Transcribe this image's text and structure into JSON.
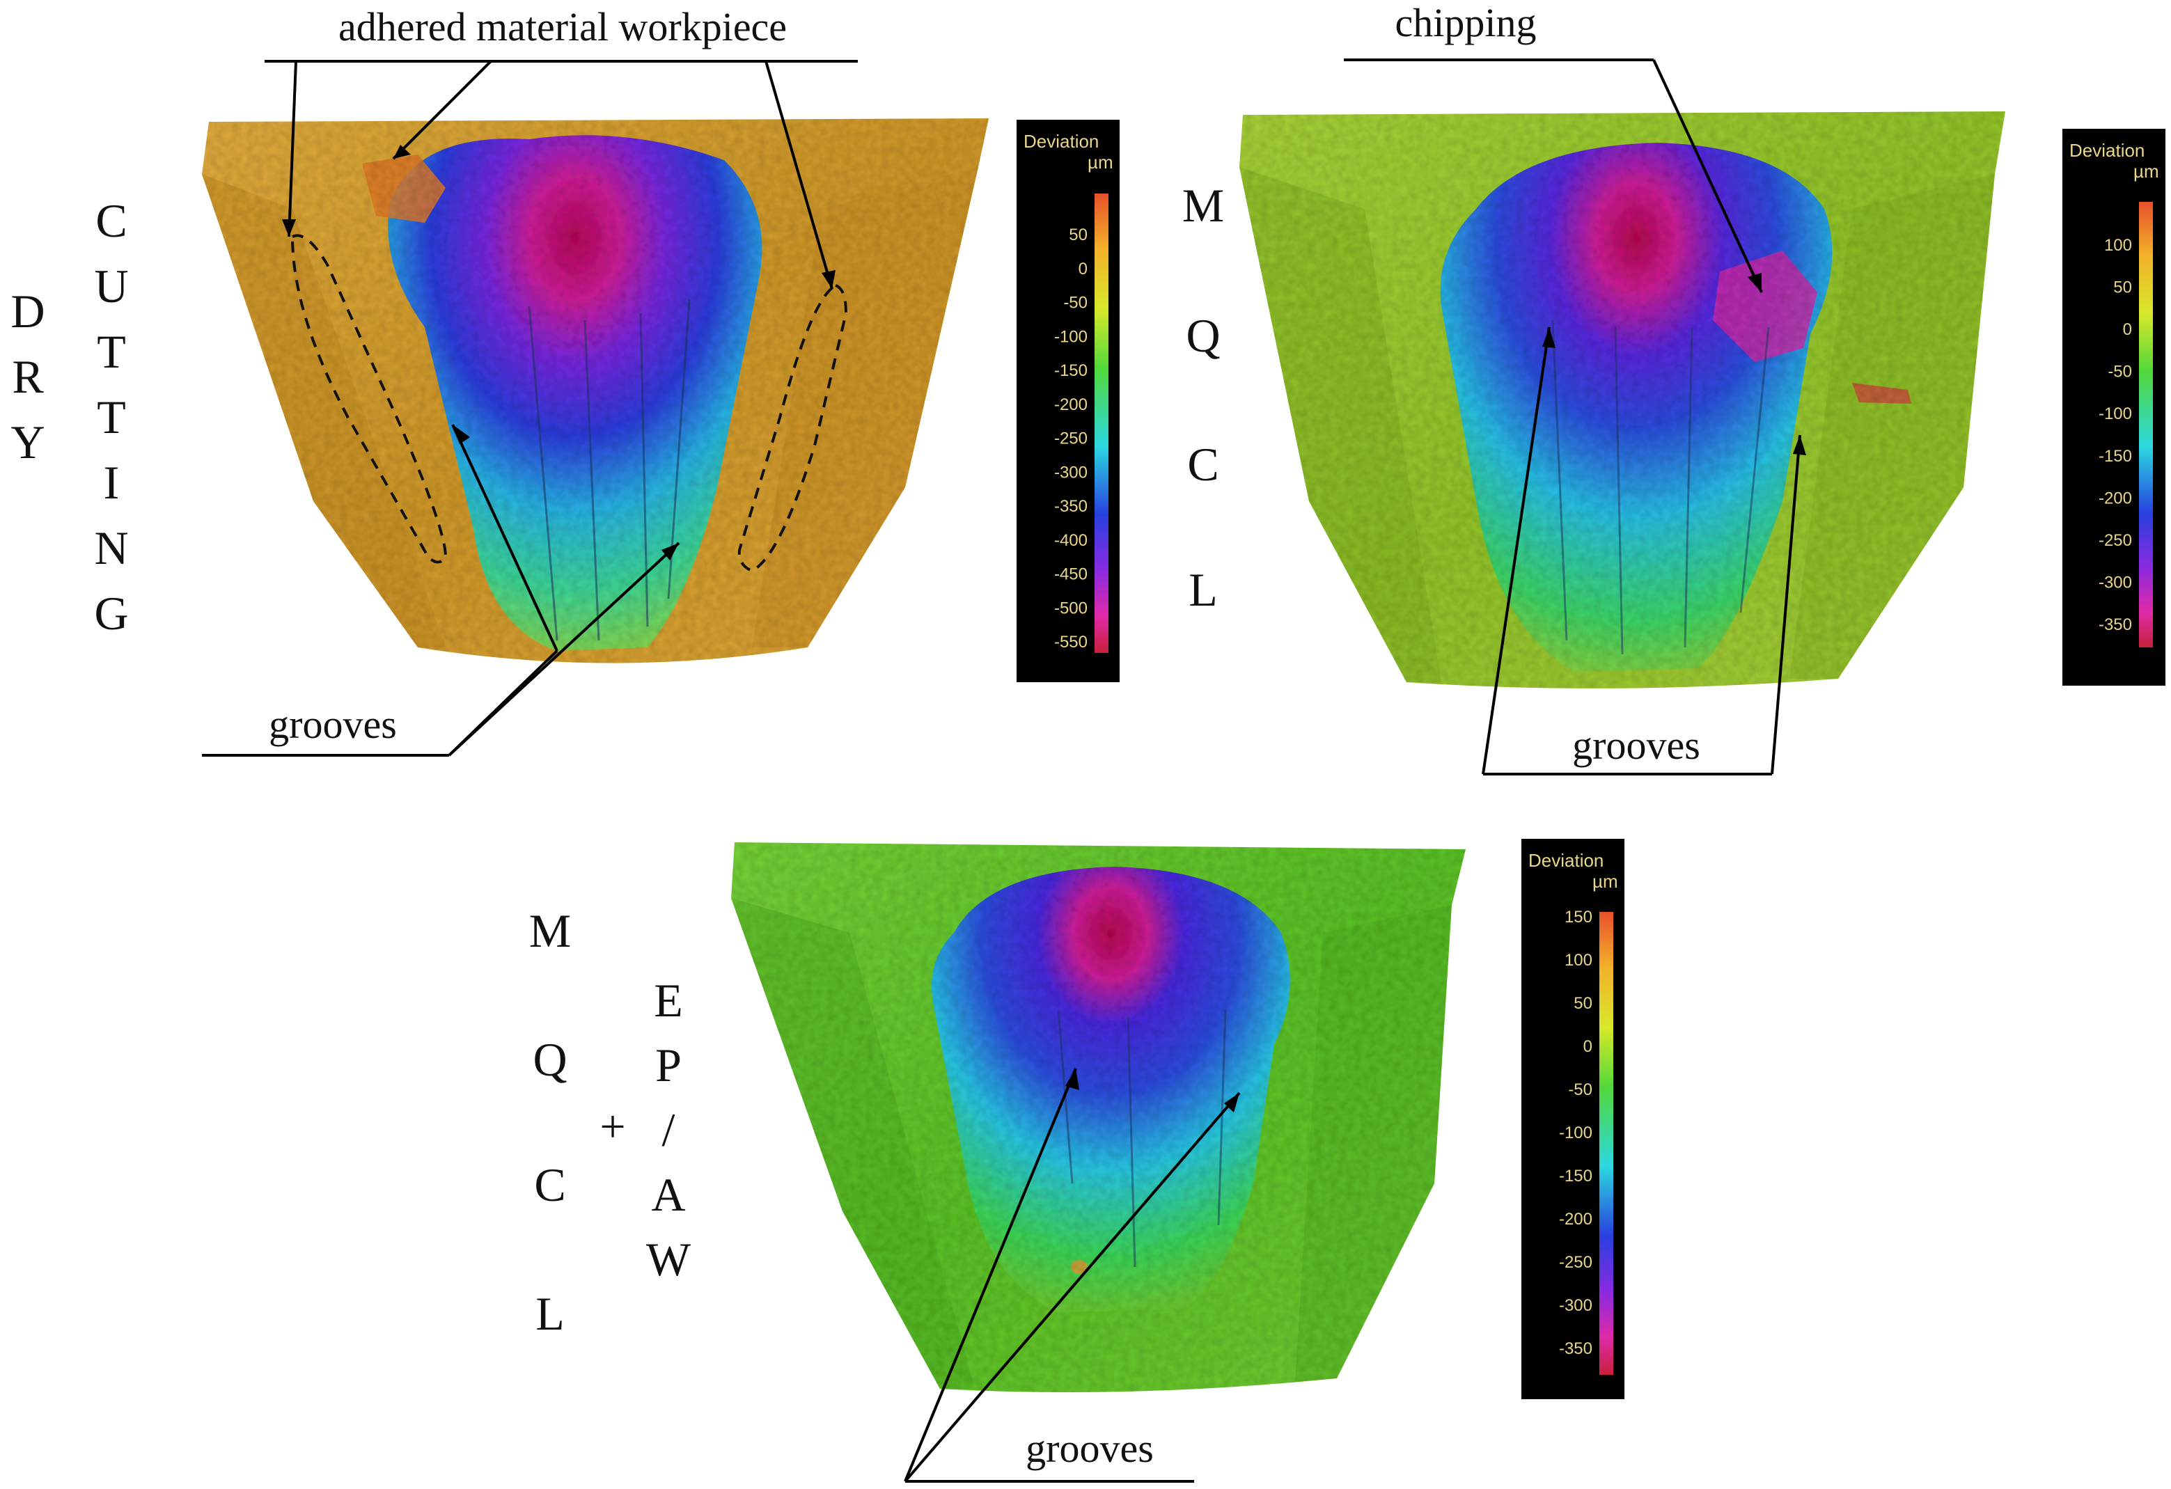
{
  "annotations": {
    "adhered": "adhered material workpiece",
    "chipping": "chipping",
    "grooves": "grooves"
  },
  "conditions": {
    "dry_left": [
      "D",
      "R",
      "Y"
    ],
    "dry_right": [
      "C",
      "U",
      "T",
      "T",
      "I",
      "N",
      "G"
    ],
    "mqcl": [
      "M",
      "Q",
      "C",
      "L"
    ],
    "plus": "+",
    "epaw": [
      "E",
      "P",
      "/",
      "A",
      "W"
    ]
  },
  "colorbars": [
    {
      "title": "Deviation",
      "unit": "µm",
      "ticks": [
        "50",
        "0",
        "-50",
        "-100",
        "-150",
        "-200",
        "-250",
        "-300",
        "-350",
        "-400",
        "-450",
        "-500",
        "-550"
      ]
    },
    {
      "title": "Deviation",
      "unit": "µm",
      "ticks": [
        "100",
        "50",
        "0",
        "-50",
        "-100",
        "-150",
        "-200",
        "-250",
        "-300",
        "-350"
      ]
    },
    {
      "title": "Deviation",
      "unit": "µm",
      "ticks": [
        "150",
        "100",
        "50",
        "0",
        "-50",
        "-100",
        "-150",
        "-200",
        "-250",
        "-300",
        "-350"
      ]
    }
  ],
  "colors": {
    "dry_surface": "#d9a233",
    "mqcl_surface": "#9fcf33",
    "epaw_surface": "#67cc2a",
    "crater_deep": "#c8146e",
    "crater_mid": "#3a2bd8",
    "crater_shallow": "#2ec7e0"
  }
}
